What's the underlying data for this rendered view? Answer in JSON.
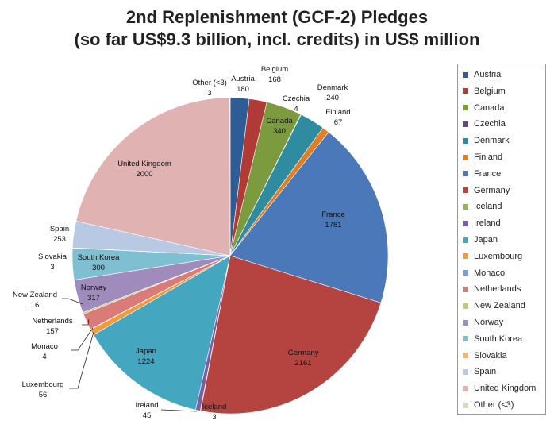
{
  "chart_data": {
    "type": "pie",
    "title": "2nd Replenishment (GCF-2) Pledges",
    "subtitle": "(so far US$9.3 billion, incl. credits) in US$ million",
    "slices": [
      {
        "label": "Austria",
        "value": 180,
        "value_text": "180",
        "color": "#2e5c94"
      },
      {
        "label": "Belgium",
        "value": 168,
        "value_text": "168",
        "color": "#b03a36"
      },
      {
        "label": "Canada",
        "value": 340,
        "value_text": "340",
        "color": "#7c9a3e"
      },
      {
        "label": "Czechia",
        "value": 4,
        "value_text": "4",
        "color": "#64487f"
      },
      {
        "label": "Denmark",
        "value": 240,
        "value_text": "240",
        "color": "#2f8ba0"
      },
      {
        "label": "Finland",
        "value": 67,
        "value_text": "67",
        "color": "#e07e22"
      },
      {
        "label": "France",
        "value": 1781,
        "value_text": "1781",
        "color": "#4a78b8"
      },
      {
        "label": "Germany",
        "value": 2161,
        "value_text": "2161",
        "color": "#b54441"
      },
      {
        "label": "Iceland",
        "value": 3,
        "value_text": "3",
        "color": "#93b84b"
      },
      {
        "label": "Ireland",
        "value": 45,
        "value_text": "45",
        "color": "#7b5ea4"
      },
      {
        "label": "Japan",
        "value": 1224,
        "value_text": "1224",
        "color": "#45a6c0"
      },
      {
        "label": "Luxembourg",
        "value": 56,
        "value_text": "56",
        "color": "#f29a3a"
      },
      {
        "label": "Monaco",
        "value": 4,
        "value_text": "4",
        "color": "#7b9cd0"
      },
      {
        "label": "Netherlands",
        "value": 157,
        "value_text": "157",
        "color": "#d97b78"
      },
      {
        "label": "New Zealand",
        "value": 16,
        "value_text": "16",
        "color": "#b5cc86"
      },
      {
        "label": "Norway",
        "value": 317,
        "value_text": "317",
        "color": "#a08bbd"
      },
      {
        "label": "South Korea",
        "value": 300,
        "value_text": "300",
        "color": "#7ebfd1"
      },
      {
        "label": "Slovakia",
        "value": 3,
        "value_text": "3",
        "color": "#f3b47b"
      },
      {
        "label": "Spain",
        "value": 253,
        "value_text": "253",
        "color": "#b8c9e4"
      },
      {
        "label": "United Kingdom",
        "value": 2000,
        "value_text": "2000",
        "color": "#e0b2b2"
      },
      {
        "label": "Other (<3)",
        "value": 3,
        "value_text": "3",
        "color": "#d2dfbb",
        "display_label": "Other (<3)"
      }
    ],
    "legend_position": "right"
  }
}
